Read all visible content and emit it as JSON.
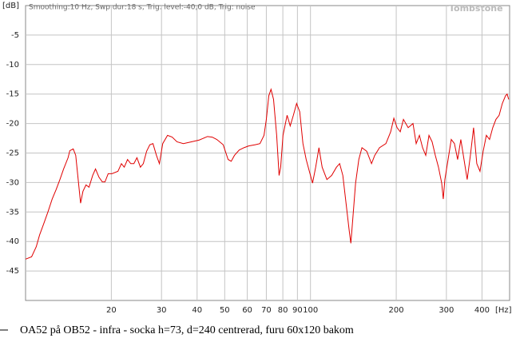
{
  "chart_data": {
    "type": "line",
    "header": "Smoothing:10 Hz, Swp dur:18 s, Trig. level:-40,0 dB, Trig: noise",
    "watermark": "Tombstone",
    "y_unit": "[dB]",
    "x_unit": "[Hz]",
    "caption": "OA52 på OB52 - infra - socka h=73, d=240 centrerad,  furu 60x120 bakom",
    "x_log": true,
    "grid": true,
    "xlim": [
      10,
      500
    ],
    "ylim": [
      -50,
      0
    ],
    "xticks": [
      20,
      30,
      40,
      50,
      60,
      70,
      80,
      90,
      100,
      200,
      300,
      400
    ],
    "yticks": [
      -5,
      -10,
      -15,
      -20,
      -25,
      -30,
      -35,
      -40,
      -45
    ],
    "series": [
      {
        "color": "#e00000",
        "x": [
          10.0,
          10.5,
          10.9,
          11.2,
          11.6,
          12.0,
          12.4,
          12.8,
          13.2,
          13.6,
          14.1,
          14.3,
          14.7,
          15.0,
          15.3,
          15.6,
          15.9,
          16.3,
          16.7,
          17.2,
          17.6,
          18.1,
          18.6,
          19.0,
          19.5,
          20.1,
          21.1,
          21.7,
          22.2,
          22.8,
          23.4,
          24.0,
          24.6,
          25.3,
          25.9,
          26.6,
          27.3,
          28.0,
          28.8,
          29.5,
          30.3,
          31.5,
          32.7,
          34.0,
          35.8,
          38.2,
          40.7,
          43.5,
          45.2,
          46.9,
          49.4,
          51.4,
          52.7,
          54.1,
          56.2,
          58.4,
          60.7,
          64.0,
          66.5,
          68.7,
          70.0,
          71.4,
          72.7,
          74.2,
          76.1,
          77.6,
          78.6,
          80.1,
          82.8,
          84.9,
          87.1,
          89.4,
          91.7,
          94.1,
          96.6,
          99.1,
          101.7,
          104.3,
          107.1,
          109.9,
          114.2,
          118.7,
          123.4,
          126.6,
          129.9,
          133.3,
          136.8,
          138.6,
          140.4,
          144.0,
          147.8,
          151.6,
          157.6,
          163.8,
          168.1,
          174.7,
          184.0,
          191.2,
          196.2,
          201.4,
          206.6,
          212.0,
          220.3,
          229.0,
          235.0,
          241.2,
          247.5,
          253.9,
          260.6,
          267.3,
          274.3,
          281.4,
          288.8,
          292.5,
          296.3,
          304.1,
          312.0,
          320.2,
          328.5,
          337.1,
          345.9,
          354.9,
          364.2,
          373.7,
          383.5,
          393.6,
          403.8,
          414.4,
          425.2,
          436.3,
          447.7,
          459.4,
          471.4,
          483.7,
          490.0,
          496.4
        ],
        "values": [
          -43.0,
          -42.6,
          -40.9,
          -38.9,
          -36.9,
          -34.9,
          -32.8,
          -31.2,
          -29.5,
          -27.7,
          -25.8,
          -24.6,
          -24.3,
          -25.4,
          -29.5,
          -33.5,
          -31.5,
          -30.4,
          -30.8,
          -28.8,
          -27.7,
          -29.1,
          -29.9,
          -29.9,
          -28.5,
          -28.5,
          -28.1,
          -26.8,
          -27.4,
          -26.1,
          -26.8,
          -26.8,
          -25.8,
          -27.4,
          -26.8,
          -24.7,
          -23.6,
          -23.4,
          -25.4,
          -26.8,
          -23.4,
          -22.0,
          -22.3,
          -23.1,
          -23.4,
          -23.1,
          -22.8,
          -22.2,
          -22.3,
          -22.7,
          -23.6,
          -26.1,
          -26.4,
          -25.4,
          -24.5,
          -24.1,
          -23.8,
          -23.6,
          -23.4,
          -22.0,
          -19.3,
          -15.3,
          -14.2,
          -15.9,
          -22.0,
          -28.8,
          -27.4,
          -22.0,
          -18.6,
          -20.4,
          -18.6,
          -16.6,
          -18.0,
          -23.4,
          -26.1,
          -28.1,
          -30.1,
          -27.4,
          -24.1,
          -27.4,
          -29.5,
          -28.8,
          -27.4,
          -26.8,
          -28.8,
          -33.5,
          -38.2,
          -40.3,
          -36.9,
          -30.1,
          -26.1,
          -24.1,
          -24.7,
          -26.8,
          -25.4,
          -24.1,
          -23.4,
          -21.4,
          -19.1,
          -20.7,
          -21.4,
          -19.3,
          -20.7,
          -20.0,
          -23.4,
          -22.0,
          -24.1,
          -25.4,
          -22.0,
          -23.1,
          -25.4,
          -27.4,
          -30.1,
          -32.8,
          -29.5,
          -26.1,
          -22.7,
          -23.4,
          -26.1,
          -22.7,
          -26.1,
          -29.5,
          -25.4,
          -20.7,
          -26.8,
          -28.1,
          -24.7,
          -22.0,
          -22.7,
          -20.7,
          -19.3,
          -18.6,
          -16.6,
          -15.3,
          -15.0,
          -15.9
        ]
      }
    ]
  }
}
